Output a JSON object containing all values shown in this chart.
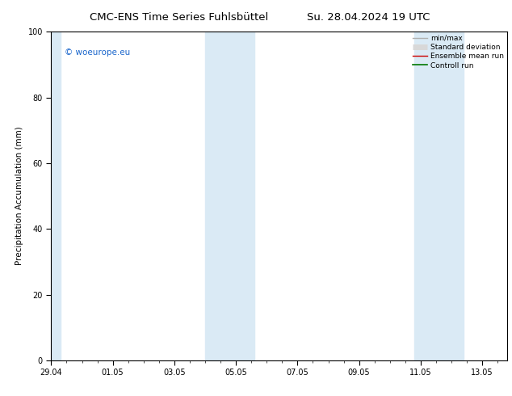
{
  "title_left": "CMC-ENS Time Series Fuhlsbüttel",
  "title_right": "Su. 28.04.2024 19 UTC",
  "ylabel": "Precipitation Accumulation (mm)",
  "ylim": [
    0,
    100
  ],
  "yticks": [
    0,
    20,
    40,
    60,
    80,
    100
  ],
  "xlim": [
    0,
    14.8
  ],
  "xtick_positions": [
    0,
    2,
    4,
    6,
    8,
    10,
    12,
    14
  ],
  "xtick_labels": [
    "29.04",
    "01.05",
    "03.05",
    "05.05",
    "07.05",
    "09.05",
    "11.05",
    "13.05"
  ],
  "shaded_bands": [
    {
      "xstart": -0.1,
      "xend": 0.3
    },
    {
      "xstart": 5.0,
      "xend": 6.6
    },
    {
      "xstart": 11.8,
      "xend": 13.4
    }
  ],
  "band_color": "#daeaf5",
  "watermark_text": "© woeurope.eu",
  "watermark_color": "#1a66cc",
  "legend_entries": [
    {
      "label": "min/max",
      "color": "#b0b0b0",
      "lw": 1.0
    },
    {
      "label": "Standard deviation",
      "color": "#d8d8d8",
      "lw": 5.0
    },
    {
      "label": "Ensemble mean run",
      "color": "#cc0000",
      "lw": 1.0
    },
    {
      "label": "Controll run",
      "color": "#007700",
      "lw": 1.2
    }
  ],
  "bg_color": "#ffffff",
  "title_fontsize": 9.5,
  "label_fontsize": 7.5,
  "tick_fontsize": 7.0,
  "legend_fontsize": 6.5,
  "watermark_fontsize": 7.5
}
